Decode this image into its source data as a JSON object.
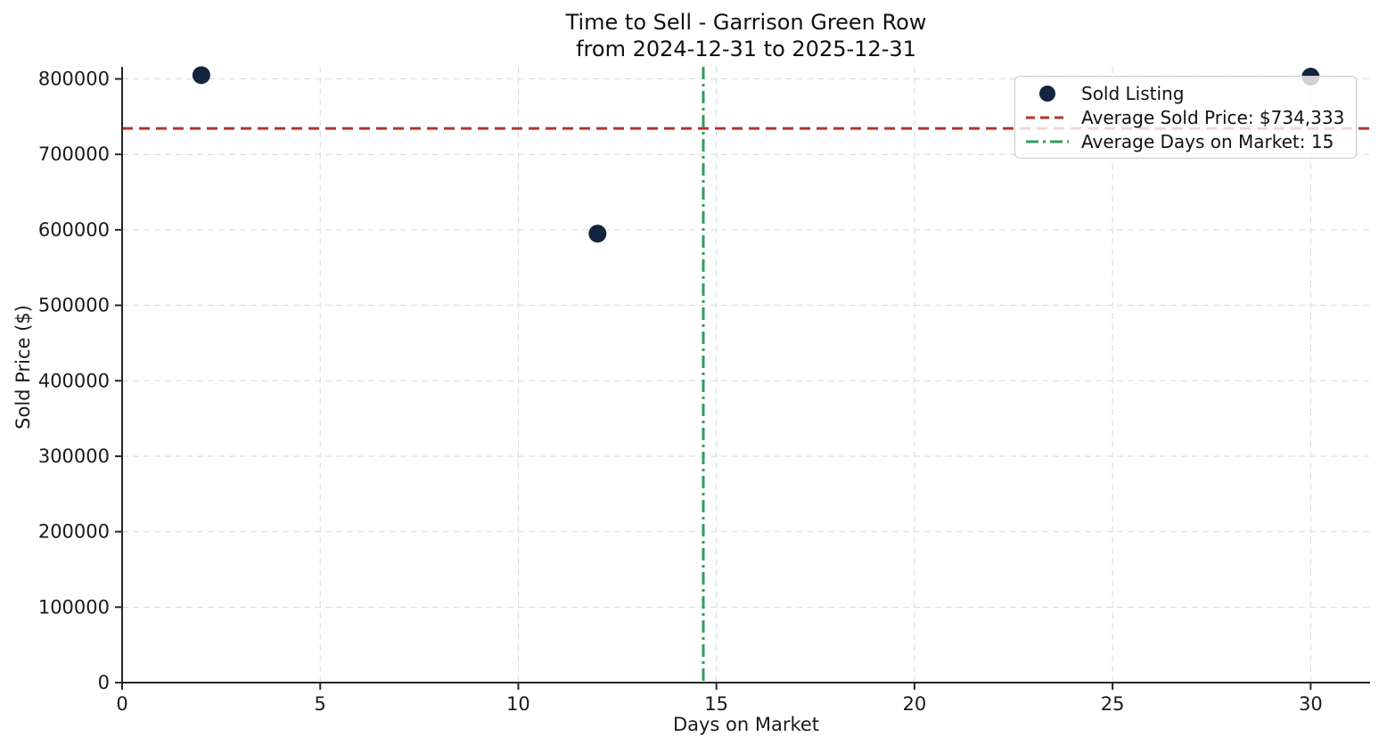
{
  "chart_data": {
    "type": "scatter",
    "title_line1": "Time to Sell - Garrison Green Row",
    "title_line2": "from 2024-12-31 to 2025-12-31",
    "xlabel": "Days on Market",
    "ylabel": "Sold Price ($)",
    "points": [
      {
        "x": 2,
        "y": 805000
      },
      {
        "x": 12,
        "y": 595000
      },
      {
        "x": 30,
        "y": 803000
      }
    ],
    "x_ticks": [
      0,
      5,
      10,
      15,
      20,
      25,
      30
    ],
    "y_ticks": [
      0,
      100000,
      200000,
      300000,
      400000,
      500000,
      600000,
      700000,
      800000
    ],
    "xlim": [
      0,
      31.5
    ],
    "ylim": [
      0,
      816000
    ],
    "grid": true,
    "avg_sold_price_value": 734333,
    "avg_days_on_market_value": 14.67,
    "legend": {
      "position": "upper right",
      "entries": [
        {
          "label": "Sold Listing",
          "type": "marker"
        },
        {
          "label": "Average Sold Price: $734,333",
          "type": "dashed"
        },
        {
          "label": "Average Days on Market: 15",
          "type": "dashdot"
        }
      ]
    },
    "colors": {
      "marker": "#13253e",
      "avg_price_line": "#b5342f",
      "avg_days_line": "#2f9e5a",
      "grid": "#d9d9d9",
      "spine": "#262626",
      "text": "#1a1a1a"
    }
  }
}
